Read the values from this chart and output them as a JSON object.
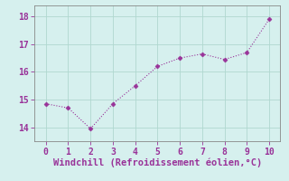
{
  "x": [
    0,
    1,
    2,
    3,
    4,
    5,
    6,
    7,
    8,
    9,
    10
  ],
  "y": [
    14.85,
    14.7,
    13.95,
    14.85,
    15.5,
    16.2,
    16.5,
    16.65,
    16.45,
    16.7,
    17.9
  ],
  "line_color": "#993399",
  "marker": "D",
  "marker_size": 2.5,
  "line_width": 0.8,
  "xlabel": "Windchill (Refroidissement éolien,°C)",
  "xlabel_color": "#993399",
  "xlim": [
    -0.5,
    10.5
  ],
  "ylim": [
    13.5,
    18.4
  ],
  "yticks": [
    14,
    15,
    16,
    17,
    18
  ],
  "xticks": [
    0,
    1,
    2,
    3,
    4,
    5,
    6,
    7,
    8,
    9,
    10
  ],
  "bg_color": "#d6f0ee",
  "grid_color": "#b0d8d0",
  "tick_color": "#993399",
  "spine_color": "#888888",
  "font_size": 7,
  "xlabel_fontsize": 7.5
}
